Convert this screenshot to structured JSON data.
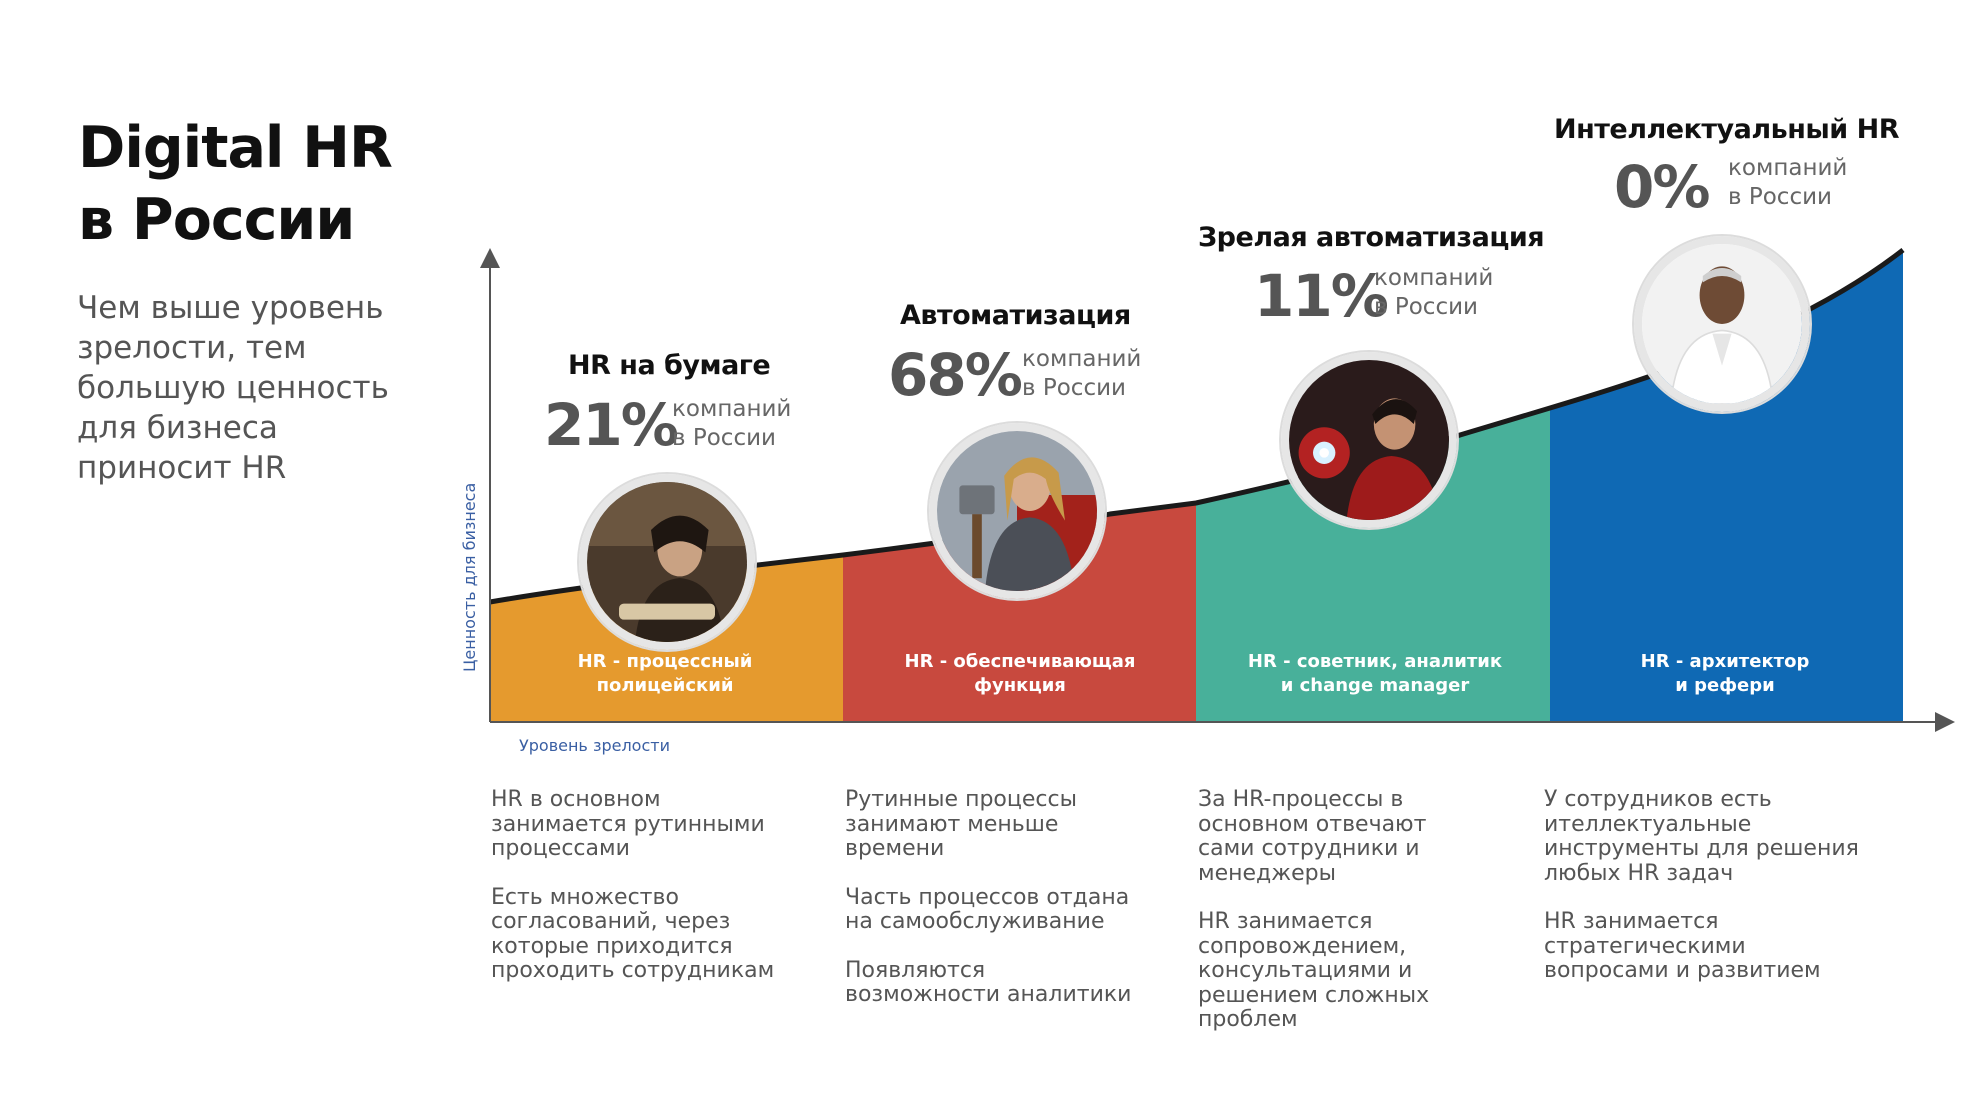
{
  "title": {
    "line1": "Digital HR",
    "line2": "в России"
  },
  "subtitle": {
    "lines": [
      "Чем выше уровень",
      "зрелости, тем",
      "большую ценность",
      "для  бизнеса",
      "приносит HR"
    ]
  },
  "axes": {
    "x_label": "Уровень зрелости",
    "y_label": "Ценность для бизнеса"
  },
  "colors": {
    "orange": "#e59a2e",
    "red": "#c8493e",
    "teal": "#48b09a",
    "blue": "#0f69b4",
    "curve": "#1a1a1a",
    "axis": "#555555"
  },
  "stages": [
    {
      "name": "HR на бумаге",
      "percent": "21%",
      "note": [
        "компаний",
        "в России"
      ],
      "band": [
        "HR - процессный",
        "полицейский"
      ],
      "portrait": "man-with-scroll-portrait",
      "description": [
        [
          "HR в основном",
          "занимается рутинными",
          "процессами"
        ],
        [
          "Есть множество",
          "согласований, через",
          "которые приходится",
          "проходить сотрудникам"
        ]
      ]
    },
    {
      "name": "Автоматизация",
      "percent": "68%",
      "note": [
        "компаний",
        "в России"
      ],
      "band": [
        "HR - обеспечивающая",
        "функция"
      ],
      "portrait": "warrior-with-hammer-portrait",
      "description": [
        [
          "Рутинные процессы",
          "занимают меньше",
          "времени"
        ],
        [
          "Часть процессов отдана",
          "на самообслуживание"
        ],
        [
          "Появляются",
          "возможности аналитики"
        ]
      ]
    },
    {
      "name": "Зрелая автоматизация",
      "percent": "11%",
      "note": [
        "компаний",
        "в России"
      ],
      "band": [
        "HR - советник, аналитик",
        "и change manager"
      ],
      "portrait": "armored-hero-portrait",
      "description": [
        [
          "За HR-процессы в",
          "основном отвечают",
          "сами сотрудники и",
          "менеджеры"
        ],
        [
          "HR занимается",
          "сопровождением,",
          "консультациями и",
          "решением сложных",
          "проблем"
        ]
      ]
    },
    {
      "name": "Интеллектуальный HR",
      "percent": "0%",
      "note": [
        "компаний",
        "в России"
      ],
      "band": [
        "HR - архитектор",
        "и рефери"
      ],
      "portrait": "man-in-white-portrait",
      "description": [
        [
          "У сотрудников есть",
          "ителлектуальные",
          "инструменты для решения",
          "любых HR задач"
        ],
        [
          "HR занимается",
          "стратегическими",
          "вопросами и развитием"
        ]
      ]
    }
  ]
}
